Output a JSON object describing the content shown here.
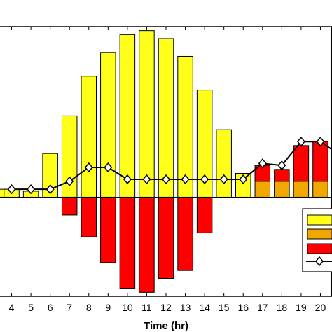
{
  "colors": {
    "yellow": "#ffff1a",
    "orange": "#f0a800",
    "red": "#ff0000",
    "line": "#000000",
    "axis": "#000000"
  },
  "chart_data": {
    "type": "bar",
    "xlabel": "Time (hr)",
    "ylabel": "",
    "title": "",
    "grid": false,
    "legend_position": "lower-right",
    "xlim": [
      3.4,
      20.6
    ],
    "ylim": [
      -5.0,
      8.6
    ],
    "categories": [
      4,
      5,
      6,
      7,
      8,
      9,
      10,
      11,
      12,
      13,
      14,
      15,
      16,
      17,
      18,
      19,
      20
    ],
    "tick_labels": [
      "4",
      "5",
      "6",
      "7",
      "8",
      "9",
      "10",
      "11",
      "12",
      "13",
      "14",
      "15",
      "16",
      "17",
      "18",
      "19",
      "20"
    ],
    "series": [
      {
        "color_key": "yellow",
        "kind": "bar",
        "x": [
          3.6,
          4,
          5,
          6,
          7,
          8,
          9,
          10,
          11,
          12,
          13,
          14,
          15,
          16
        ],
        "values": [
          0.4,
          0.4,
          0.3,
          2.2,
          4.1,
          6.1,
          7.3,
          8.2,
          8.4,
          8.0,
          7.1,
          5.4,
          3.4,
          1.2
        ]
      },
      {
        "color_key": "orange",
        "kind": "bar",
        "x": [
          17,
          18,
          19,
          20
        ],
        "values": [
          0.8,
          0.8,
          0.8,
          0.8
        ]
      },
      {
        "color_key": "red",
        "kind": "bar-stacked",
        "x": [
          17,
          18,
          19,
          20
        ],
        "values": [
          0.8,
          0.6,
          1.8,
          2.0
        ]
      },
      {
        "color_key": "red",
        "kind": "bar",
        "x": [
          7,
          8,
          9,
          10,
          11,
          12,
          13,
          14
        ],
        "values": [
          -0.9,
          -2.0,
          -3.3,
          -4.6,
          -4.8,
          -4.1,
          -3.7,
          -1.8
        ]
      },
      {
        "color_key": "line",
        "kind": "line",
        "x": [
          4,
          5,
          6,
          7,
          8,
          9,
          10,
          11,
          12,
          13,
          14,
          15,
          16,
          17,
          18,
          19,
          20,
          20.6
        ],
        "values": [
          0.4,
          0.4,
          0.4,
          0.8,
          1.5,
          1.5,
          0.9,
          0.9,
          0.9,
          0.9,
          0.9,
          0.9,
          0.9,
          1.7,
          1.6,
          2.8,
          2.8,
          2.4
        ]
      }
    ]
  }
}
